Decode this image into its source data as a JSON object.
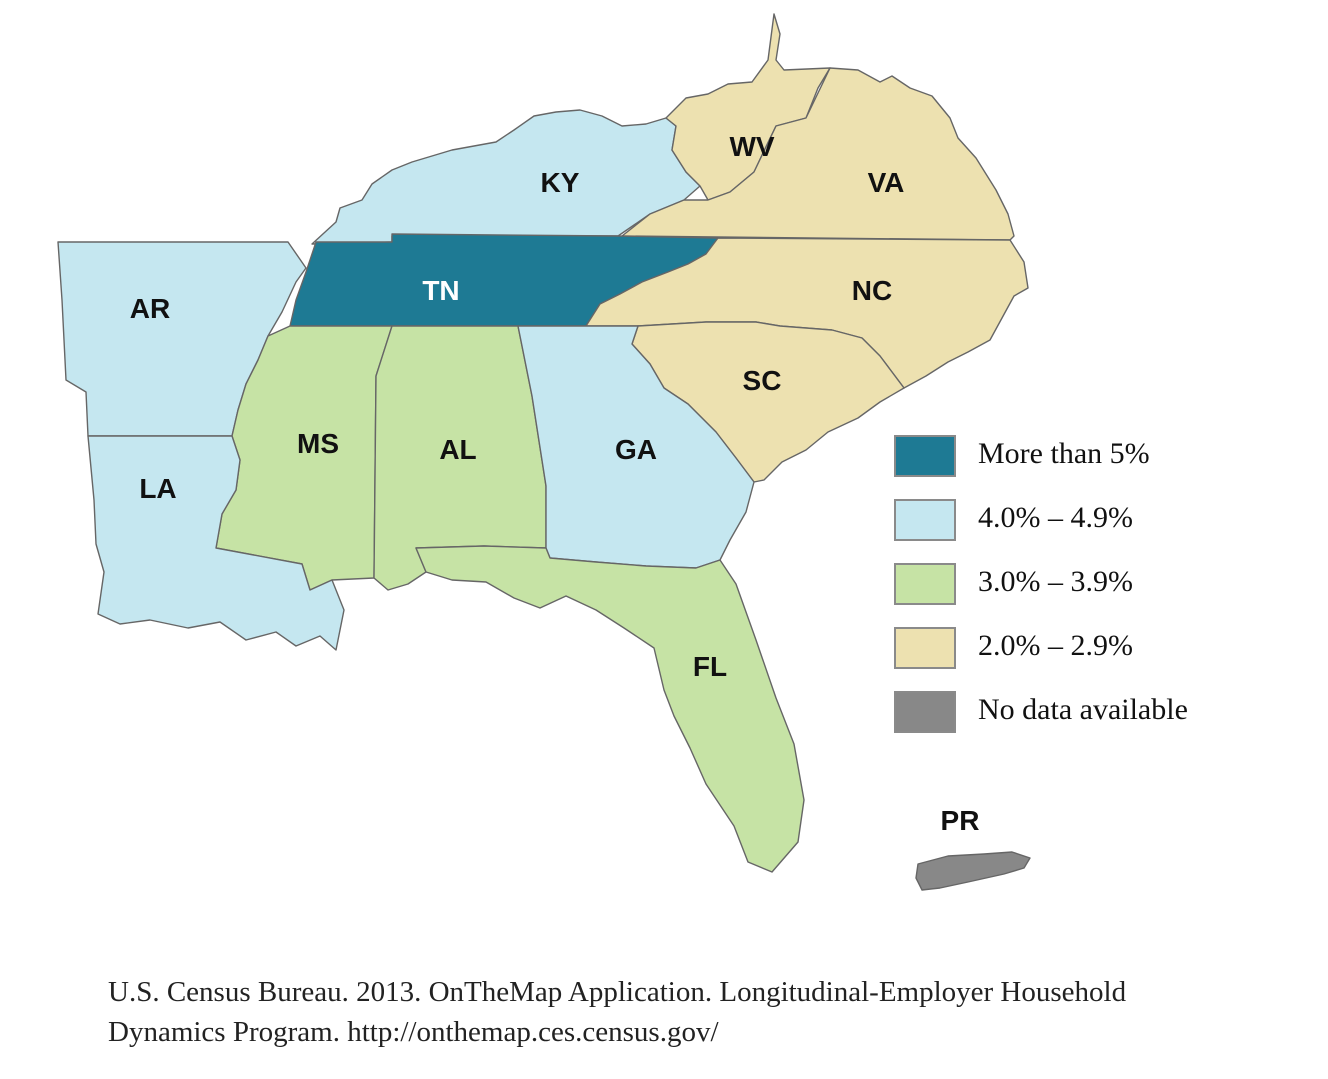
{
  "map": {
    "legend": [
      {
        "label": "More than 5%",
        "color": "#1e7a94"
      },
      {
        "label": "4.0% – 4.9%",
        "color": "#c5e7f0"
      },
      {
        "label": "3.0% – 3.9%",
        "color": "#c6e3a5"
      },
      {
        "label": "2.0% – 2.9%",
        "color": "#ede1b0"
      },
      {
        "label": "No data available",
        "color": "#888888"
      }
    ],
    "states": [
      {
        "label": "KY",
        "class": "4.0% – 4.9%"
      },
      {
        "label": "WV",
        "class": "2.0% – 2.9%"
      },
      {
        "label": "VA",
        "class": "2.0% – 2.9%"
      },
      {
        "label": "AR",
        "class": "4.0% – 4.9%"
      },
      {
        "label": "TN",
        "class": "More than 5%"
      },
      {
        "label": "NC",
        "class": "2.0% – 2.9%"
      },
      {
        "label": "SC",
        "class": "2.0% – 2.9%"
      },
      {
        "label": "MS",
        "class": "3.0% – 3.9%"
      },
      {
        "label": "AL",
        "class": "3.0% – 3.9%"
      },
      {
        "label": "GA",
        "class": "4.0% – 4.9%"
      },
      {
        "label": "LA",
        "class": "4.0% – 4.9%"
      },
      {
        "label": "FL",
        "class": "3.0% – 3.9%"
      },
      {
        "label": "PR",
        "class": "No data available"
      }
    ]
  },
  "source": {
    "line1": "U.S. Census Bureau. 2013. OnTheMap Application. Longitudinal-Employer Household",
    "line2": "Dynamics Program. http://onthemap.ces.census.gov/"
  }
}
